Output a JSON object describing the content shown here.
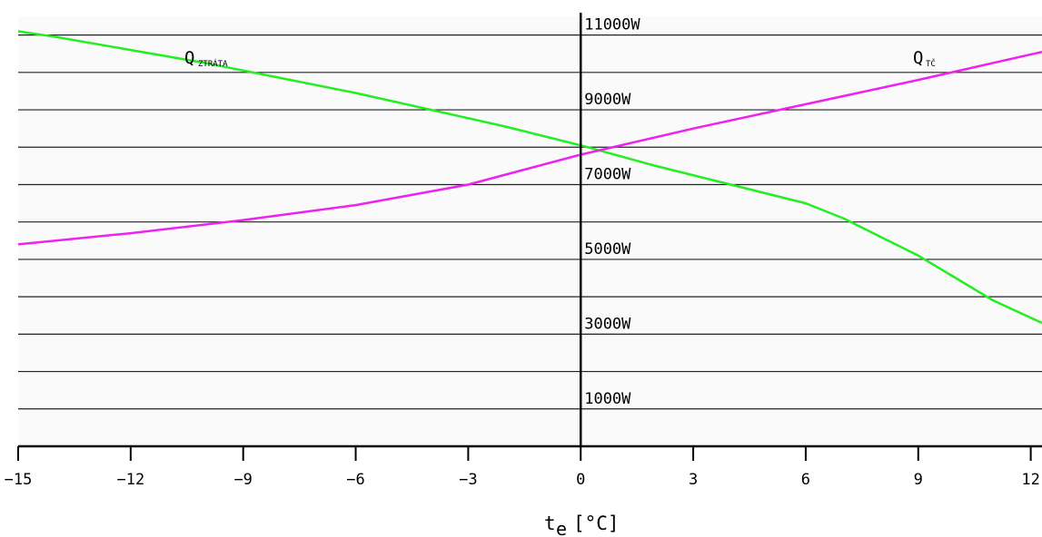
{
  "chart_data": {
    "type": "line",
    "xlabel_main": "t",
    "xlabel_sub": "e",
    "xlabel_unit": "[°C]",
    "xlim": [
      -15,
      12.3
    ],
    "ylim": [
      0,
      11500
    ],
    "x_ticks": [
      -15,
      -12,
      -9,
      -6,
      -3,
      0,
      3,
      6,
      9,
      12
    ],
    "y_tick_labels": [
      {
        "value": 1000,
        "label": "1000W"
      },
      {
        "value": 3000,
        "label": "3000W"
      },
      {
        "value": 5000,
        "label": "5000W"
      },
      {
        "value": 7000,
        "label": "7000W"
      },
      {
        "value": 9000,
        "label": "9000W"
      },
      {
        "value": 11000,
        "label": "11000W"
      }
    ],
    "grid_values": [
      1000,
      2000,
      3000,
      4000,
      5000,
      6000,
      7000,
      8000,
      9000,
      10000,
      11000
    ],
    "grid": true,
    "series": [
      {
        "name_main": "Q",
        "name_sub": "ZTRÁTA",
        "color": "#22ee22",
        "x": [
          -15,
          -14,
          -12,
          -10,
          -8,
          -6,
          -4,
          -2,
          0,
          2,
          4,
          6,
          7,
          8,
          9,
          10,
          11,
          12.3
        ],
        "values": [
          11100,
          10950,
          10600,
          10250,
          9850,
          9450,
          9000,
          8550,
          8050,
          7500,
          7000,
          6500,
          6100,
          5600,
          5100,
          4500,
          3900,
          3300
        ]
      },
      {
        "name_main": "Q",
        "name_sub": "TČ",
        "color": "#ee22ee",
        "x": [
          -15,
          -12,
          -9,
          -6,
          -3,
          0,
          3,
          6,
          9,
          12.3
        ],
        "values": [
          5400,
          5700,
          6050,
          6450,
          7000,
          7800,
          8500,
          9150,
          9800,
          10550
        ]
      }
    ]
  }
}
